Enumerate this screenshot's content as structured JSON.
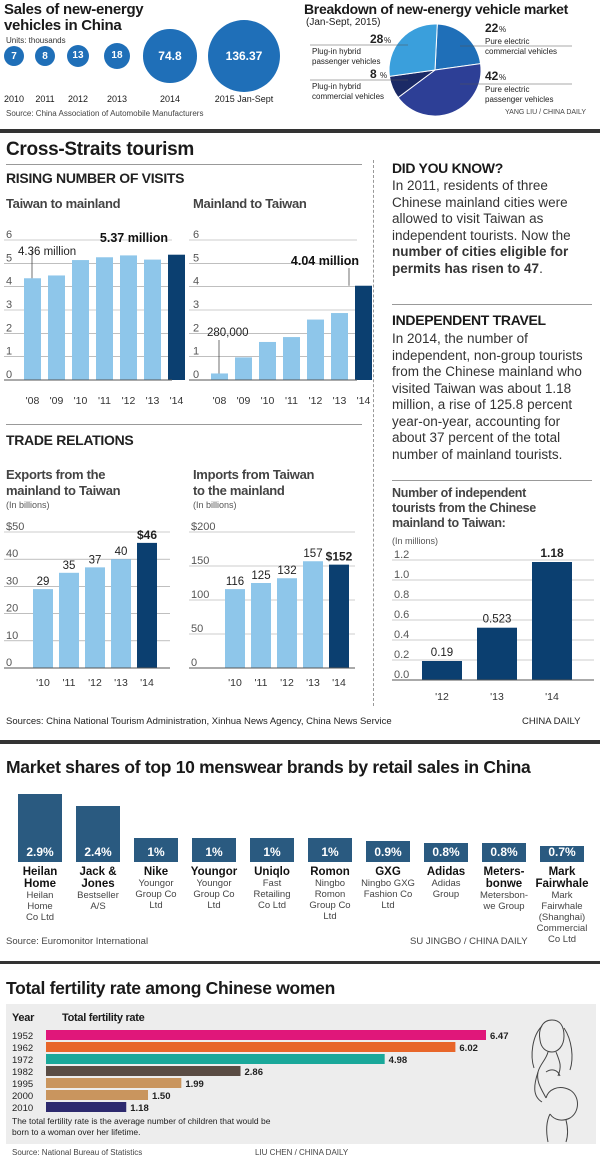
{
  "nev_sales": {
    "title": "Sales of new-energy vehicles in China",
    "units": "Units: thousands",
    "source": "Source: China Association of Automobile Manufacturers",
    "chart_data": {
      "type": "bubble",
      "categories": [
        "2010",
        "2011",
        "2012",
        "2013",
        "2014",
        "2015 Jan-Sept"
      ],
      "values": [
        7,
        8,
        13,
        18,
        74.8,
        136.37
      ],
      "labels": [
        "7",
        "8",
        "13",
        "18",
        "74.8",
        "136.37"
      ]
    }
  },
  "nev_market": {
    "title": "Breakdown of new-energy vehicle market",
    "subtitle": "(Jan-Sept, 2015)",
    "credit": "YANG LIU / CHINA DAILY",
    "chart_data": {
      "type": "pie",
      "slices": [
        {
          "name": "Pure electric commercial vehicles",
          "pct_label": "22",
          "value": 22,
          "color": "#1f6fb8"
        },
        {
          "name": "Pure electric passenger vehicles",
          "pct_label": "42",
          "value": 42,
          "color": "#2d3f96"
        },
        {
          "name": "Plug-in hybrid commercial vehicles",
          "pct_label": "8",
          "value": 8,
          "color": "#1b2a66"
        },
        {
          "name": "Plug-in hybrid passenger vehicles",
          "pct_label": "28",
          "value": 28,
          "color": "#3a9fdc"
        }
      ],
      "pct_sign": "%",
      "label_lines": {
        "pure_comm": [
          "Pure electric",
          "commercial vehicles"
        ],
        "pure_pass": [
          "Pure electric",
          "passenger vehicles"
        ],
        "plug_comm": [
          "Plug-in hybrid",
          "commercial vehicles"
        ],
        "plug_pass": [
          "Plug-in hybrid",
          "passenger vehicles"
        ]
      }
    }
  },
  "tourism": {
    "title": "Cross-Straits tourism",
    "visits_heading": "RISING NUMBER OF VISITS",
    "trade_heading": "TRADE RELATIONS",
    "source": "Sources: China National Tourism Administration, Xinhua News Agency, China News Service",
    "credit": "CHINA DAILY",
    "did_you_know": {
      "heading": "DID YOU KNOW?",
      "text": "In 2011, residents of three Chinese mainland cities were allowed to visit Taiwan as independent tourists. Now the ",
      "bold": "number of cities eligible for permits has risen to 47",
      "end": "."
    },
    "independent": {
      "heading": "INDEPENDENT TRAVEL",
      "text": "In 2014, the number of independent, non-group tourists from the Chinese mainland who visited Taiwan was about 1.18 million, a rise of 125.8 percent year-on-year, accounting for about 37 percent of the total number of mainland tourists."
    }
  },
  "charts": {
    "tw_to_main": {
      "title": "Taiwan to mainland",
      "chart_data": {
        "type": "bar",
        "categories": [
          "'08",
          "'09",
          "'10",
          "'11",
          "'12",
          "'13",
          "'14"
        ],
        "values": [
          4.36,
          4.48,
          5.14,
          5.26,
          5.34,
          5.16,
          5.37
        ],
        "ylim": [
          0,
          6
        ],
        "yticks": [
          "0",
          "1",
          "2",
          "3",
          "4",
          "5",
          "6"
        ],
        "annotations": [
          "4.36 million",
          "5.37 million"
        ]
      }
    },
    "main_to_tw": {
      "title": "Mainland to Taiwan",
      "chart_data": {
        "type": "bar",
        "categories": [
          "'08",
          "'09",
          "'10",
          "'11",
          "'12",
          "'13",
          "'14"
        ],
        "values": [
          0.28,
          0.97,
          1.63,
          1.84,
          2.59,
          2.87,
          4.04
        ],
        "ylim": [
          0,
          6
        ],
        "yticks": [
          "0",
          "1",
          "2",
          "3",
          "4",
          "5",
          "6"
        ],
        "annotations": [
          "280,000",
          "4.04 million"
        ]
      }
    },
    "exports": {
      "title_1": "Exports from the",
      "title_2": "mainland to Taiwan",
      "unit": "(In billions)",
      "chart_data": {
        "type": "bar",
        "categories": [
          "'10",
          "'11",
          "'12",
          "'13",
          "'14"
        ],
        "values": [
          29,
          35,
          37,
          40,
          46
        ],
        "value_labels": [
          "29",
          "35",
          "37",
          "40",
          "$46"
        ],
        "ylim": [
          0,
          50
        ],
        "yticks": [
          "0",
          "10",
          "20",
          "30",
          "40",
          "$50"
        ]
      }
    },
    "imports": {
      "title_1": "Imports from Taiwan",
      "title_2": "to the mainland",
      "unit": "(In billions)",
      "chart_data": {
        "type": "bar",
        "categories": [
          "'10",
          "'11",
          "'12",
          "'13",
          "'14"
        ],
        "values": [
          116,
          125,
          132,
          157,
          152
        ],
        "value_labels": [
          "116",
          "125",
          "132",
          "157",
          "$152"
        ],
        "ylim": [
          0,
          200
        ],
        "yticks": [
          "0",
          "50",
          "100",
          "150",
          "$200"
        ]
      }
    },
    "independent": {
      "title_1": "Number of independent",
      "title_2": "tourists from the Chinese",
      "title_3": "mainland to Taiwan:",
      "unit": "(In millions)",
      "chart_data": {
        "type": "bar",
        "categories": [
          "'12",
          "'13",
          "'14"
        ],
        "values": [
          0.19,
          0.523,
          1.18
        ],
        "value_labels": [
          "0.19",
          "0.523",
          "1.18"
        ],
        "ylim": [
          0,
          1.2
        ],
        "yticks": [
          "0.0",
          "0.2",
          "0.4",
          "0.6",
          "0.8",
          "1.0",
          "1.2"
        ]
      }
    }
  },
  "menswear": {
    "title": "Market shares of top 10 menswear brands by retail sales in China",
    "source": "Source: Euromonitor International",
    "credit": "SU JINGBO / CHINA DAILY",
    "chart_data": {
      "type": "bar",
      "categories": [
        "Heilan Home",
        "Jack & Jones",
        "Nike",
        "Youngor",
        "Uniqlo",
        "Romon",
        "GXG",
        "Adidas",
        "Meters-bonwe",
        "Mark Fairwhale"
      ],
      "values": [
        2.9,
        2.4,
        1,
        1,
        1,
        1,
        0.9,
        0.8,
        0.8,
        0.7
      ],
      "value_labels": [
        "2.9%",
        "2.4%",
        "1%",
        "1%",
        "1%",
        "1%",
        "0.9%",
        "0.8%",
        "0.8%",
        "0.7%"
      ]
    },
    "brands": [
      {
        "name": [
          "Heilan",
          "Home"
        ],
        "company": [
          "Heilan",
          "Home",
          "Co Ltd"
        ]
      },
      {
        "name": [
          "Jack &",
          "Jones"
        ],
        "company": [
          "Bestseller",
          "A/S"
        ]
      },
      {
        "name": [
          "Nike"
        ],
        "company": [
          "Youngor",
          "Group Co",
          "Ltd"
        ]
      },
      {
        "name": [
          "Youngor"
        ],
        "company": [
          "Youngor",
          "Group Co",
          "Ltd"
        ]
      },
      {
        "name": [
          "Uniqlo"
        ],
        "company": [
          "Fast",
          "Retailing",
          "Co Ltd"
        ]
      },
      {
        "name": [
          "Romon"
        ],
        "company": [
          "Ningbo",
          "Romon",
          "Group Co",
          "Ltd"
        ]
      },
      {
        "name": [
          "GXG"
        ],
        "company": [
          "Ningbo GXG",
          "Fashion Co",
          "Ltd"
        ]
      },
      {
        "name": [
          "Adidas"
        ],
        "company": [
          "Adidas",
          "Group"
        ]
      },
      {
        "name": [
          "Meters-",
          "bonwe"
        ],
        "company": [
          "Metersbon-",
          "we Group"
        ]
      },
      {
        "name": [
          "Mark",
          "Fairwhale"
        ],
        "company": [
          "Mark",
          "Fairwhale",
          "(Shanghai)",
          "Commercial",
          "Co Ltd"
        ]
      }
    ]
  },
  "fertility": {
    "title": "Total fertility rate among Chinese women",
    "col_year": "Year",
    "col_rate": "Total fertility rate",
    "note": "The total fertility rate is the average number of children that would be born to a woman over her lifetime.",
    "source": "Source: National Bureau of Statistics",
    "credit": "LIU CHEN  / CHINA DAILY",
    "chart_data": {
      "type": "bar",
      "categories": [
        "1952",
        "1962",
        "1972",
        "1982",
        "1995",
        "2000",
        "2010"
      ],
      "values": [
        6.47,
        6.02,
        4.98,
        2.86,
        1.99,
        1.5,
        1.18
      ],
      "value_labels": [
        "6.47",
        "6.02",
        "4.98",
        "2.86",
        "1.99",
        "1.50",
        "1.18"
      ],
      "colors": [
        "#e0177a",
        "#e8662a",
        "#1aa89a",
        "#5a4c44",
        "#c9955e",
        "#c9955e",
        "#2d2a6e"
      ]
    }
  }
}
